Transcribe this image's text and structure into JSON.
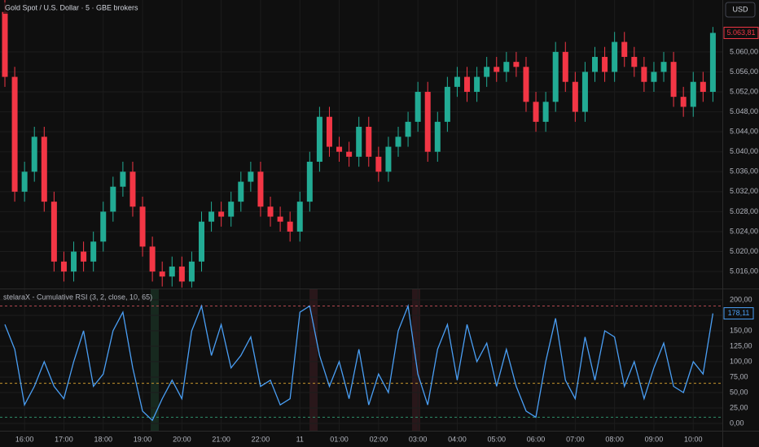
{
  "chart_data": [
    {
      "type": "candlestick",
      "title": "Gold Spot / U.S. Dollar · 5 · GBE brokers",
      "currency": "USD",
      "categories": [
        null,
        null,
        "16:00",
        null,
        null,
        null,
        "17:00",
        null,
        null,
        null,
        "18:00",
        null,
        null,
        null,
        "19:00",
        null,
        null,
        null,
        "20:00",
        null,
        null,
        null,
        "21:00",
        null,
        null,
        null,
        "22:00",
        null,
        null,
        null,
        "11",
        null,
        null,
        null,
        "01:00",
        null,
        null,
        null,
        "02:00",
        null,
        null,
        null,
        "03:00",
        null,
        null,
        null,
        "04:00",
        null,
        null,
        null,
        "05:00",
        null,
        null,
        null,
        "06:00",
        null,
        null,
        null,
        "07:00",
        null,
        null,
        null,
        "08:00",
        null,
        null,
        null,
        "09:00",
        null,
        null,
        null,
        "10:00",
        null,
        null
      ],
      "open": [
        5068,
        5055,
        5032,
        5036,
        5043,
        5030,
        5018,
        5016,
        5020,
        5018,
        5022,
        5028,
        5033,
        5036,
        5029,
        5021,
        5016,
        5015,
        5017,
        5014,
        5018,
        5026,
        5028,
        5027,
        5030,
        5034,
        5036,
        5029,
        5027,
        5026,
        5024,
        5030,
        5038,
        5047,
        5041,
        5040,
        5039,
        5045,
        5039,
        5036,
        5041,
        5043,
        5046,
        5052,
        5040,
        5046,
        5053,
        5055,
        5052,
        5055,
        5057,
        5056,
        5058,
        5057,
        5050,
        5046,
        5050,
        5060,
        5054,
        5048,
        5056,
        5059,
        5056,
        5062,
        5059,
        5057,
        5054,
        5056,
        5058,
        5051,
        5049,
        5054,
        5052
      ],
      "high": [
        5071,
        5057,
        5038,
        5045,
        5045,
        5032,
        5020,
        5022,
        5022,
        5024,
        5030,
        5035,
        5038,
        5038,
        5031,
        5023,
        5018,
        5019,
        5019,
        5020,
        5028,
        5030,
        5030,
        5032,
        5036,
        5038,
        5038,
        5031,
        5029,
        5028,
        5032,
        5040,
        5049,
        5049,
        5043,
        5042,
        5047,
        5047,
        5041,
        5043,
        5045,
        5048,
        5054,
        5054,
        5048,
        5055,
        5057,
        5057,
        5057,
        5059,
        5059,
        5060,
        5060,
        5059,
        5052,
        5052,
        5062,
        5062,
        5056,
        5058,
        5061,
        5061,
        5064,
        5064,
        5061,
        5059,
        5058,
        5060,
        5060,
        5053,
        5056,
        5056,
        5065
      ],
      "low": [
        5053,
        5030,
        5030,
        5034,
        5028,
        5016,
        5014,
        5014,
        5016,
        5016,
        5020,
        5026,
        5031,
        5027,
        5019,
        5014,
        5013,
        5013,
        5012.8,
        5012.8,
        5016,
        5024,
        5025,
        5025,
        5028,
        5032,
        5027,
        5025,
        5024,
        5022,
        5022,
        5028,
        5036,
        5039,
        5038,
        5037,
        5037,
        5037,
        5034,
        5034,
        5039,
        5041,
        5044,
        5038,
        5038,
        5044,
        5051,
        5050,
        5050,
        5053,
        5054,
        5054,
        5055,
        5048,
        5044,
        5044,
        5048,
        5052,
        5046,
        5046,
        5054,
        5054,
        5054,
        5057,
        5055,
        5052,
        5052,
        5054,
        5049,
        5047,
        5047,
        5050,
        5050
      ],
      "close": [
        5055,
        5032,
        5036,
        5043,
        5030,
        5018,
        5016,
        5020,
        5018,
        5022,
        5028,
        5033,
        5036,
        5029,
        5021,
        5016,
        5015,
        5017,
        5014,
        5018,
        5026,
        5028,
        5027,
        5030,
        5034,
        5036,
        5029,
        5027,
        5026,
        5024,
        5030,
        5038,
        5047,
        5041,
        5040,
        5039,
        5045,
        5039,
        5036,
        5041,
        5043,
        5046,
        5052,
        5040,
        5046,
        5053,
        5055,
        5052,
        5055,
        5057,
        5056,
        5058,
        5057,
        5050,
        5046,
        5050,
        5060,
        5054,
        5048,
        5056,
        5059,
        5056,
        5062,
        5059,
        5057,
        5054,
        5056,
        5058,
        5051,
        5049,
        5054,
        5052,
        5063.81
      ],
      "up_color": "#22ab94",
      "down_color": "#f23645",
      "last_price": {
        "value": 5063.81,
        "label": "5.063,81"
      },
      "ylim": [
        5012.6,
        5070.4
      ],
      "yticks": [
        {
          "value": 5016,
          "label": "5.016,00"
        },
        {
          "value": 5020,
          "label": "5.020,00"
        },
        {
          "value": 5024,
          "label": "5.024,00"
        },
        {
          "value": 5028,
          "label": "5.028,00"
        },
        {
          "value": 5032,
          "label": "5.032,00"
        },
        {
          "value": 5036,
          "label": "5.036,00"
        },
        {
          "value": 5040,
          "label": "5.040,00"
        },
        {
          "value": 5044,
          "label": "5.044,00"
        },
        {
          "value": 5048,
          "label": "5.048,00"
        },
        {
          "value": 5052,
          "label": "5.052,00"
        },
        {
          "value": 5056,
          "label": "5.056,00"
        },
        {
          "value": 5060,
          "label": "5.060,00"
        }
      ],
      "grid": true
    },
    {
      "type": "line",
      "title": "stelaraX - Cumulative RSI (3, 2, close, 10, 65)",
      "color": "#4a9ff5",
      "values": [
        160,
        120,
        30,
        60,
        100,
        60,
        40,
        100,
        150,
        60,
        80,
        150,
        180,
        90,
        20,
        5,
        40,
        70,
        40,
        150,
        190,
        110,
        160,
        90,
        110,
        140,
        60,
        70,
        30,
        40,
        180,
        190,
        110,
        60,
        100,
        40,
        120,
        30,
        80,
        50,
        150,
        190,
        80,
        30,
        120,
        160,
        70,
        160,
        100,
        130,
        60,
        120,
        60,
        20,
        10,
        100,
        170,
        70,
        40,
        140,
        70,
        150,
        140,
        60,
        100,
        40,
        90,
        130,
        60,
        50,
        100,
        80,
        178.11
      ],
      "last_value": {
        "value": 178.11,
        "label": "178,11"
      },
      "levels": [
        {
          "value": 190,
          "color": "#b2474f"
        },
        {
          "value": 65,
          "color": "#c8962e"
        },
        {
          "value": 10,
          "color": "#2e8f6a"
        }
      ],
      "ylim": [
        -11.8,
        217
      ],
      "yticks": [
        {
          "value": 0,
          "label": "0,00"
        },
        {
          "value": 25,
          "label": "25,00"
        },
        {
          "value": 50,
          "label": "50,00"
        },
        {
          "value": 75,
          "label": "75,00"
        },
        {
          "value": 100,
          "label": "100,00"
        },
        {
          "value": 125,
          "label": "125,00"
        },
        {
          "value": 150,
          "label": "150,00"
        },
        {
          "value": 175,
          "label": "175,00"
        },
        {
          "value": 200,
          "label": "200,00"
        }
      ],
      "grid": true
    }
  ]
}
